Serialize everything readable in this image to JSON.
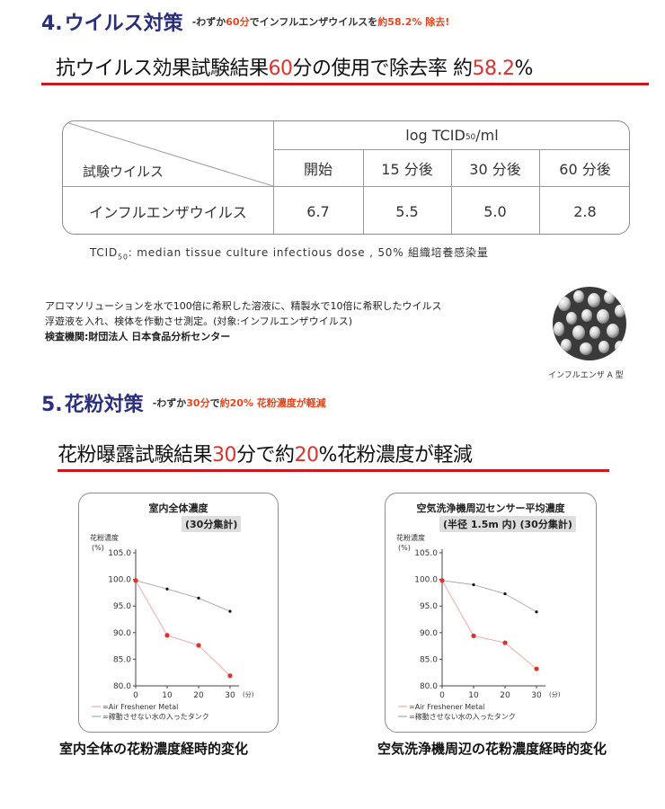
{
  "colors": {
    "accent_red": "#e0322a",
    "navy": "#2a2f7e",
    "orange": "#e8451c",
    "rule": "#c9191f"
  },
  "virus_section": {
    "num": "4.",
    "title": "ウイルス対策",
    "sub_pre": "-わずか",
    "sub_hl1": "60分",
    "sub_mid": "でインフルエンザウイルスを",
    "sub_hl2": "約58.2%",
    "sub_post": " 除去!",
    "headline_pre": "抗ウイルス効果試験結果",
    "headline_hl1": "60",
    "headline_mid": "分の使用で除去率 約",
    "headline_hl2": "58.2",
    "headline_post": "%"
  },
  "virus_table": {
    "unit_main": "log TCID",
    "unit_sub": "50",
    "unit_post": " /ml",
    "row_header": "試験ウイルス",
    "columns": [
      "開始",
      "15 分後",
      "30 分後",
      "60 分後"
    ],
    "row_label": "インフルエンザウイルス",
    "values": [
      "6.7",
      "5.5",
      "5.0",
      "2.8"
    ]
  },
  "tcid_note": {
    "pre": "TCID",
    "sub": "50",
    "post": ": median tissue culture infectious dose , 50% 組織培養感染量"
  },
  "method": {
    "line1": "アロマソリューションを水で100倍に希釈した溶液に、精製水で10倍に希釈したウイルス",
    "line2": "浮遊液を入れ、検体を作動させ測定。(対象:インフルエンザウイルス)",
    "line3": "検査機関:財団法人 日本食品分析センター"
  },
  "virus_image_caption": "インフルエンザ A 型",
  "pollen_section": {
    "num": "5.",
    "title": "花粉対策",
    "sub_pre": "-わずか",
    "sub_hl1": "30分",
    "sub_mid": "で",
    "sub_hl2": "約20% 花粉濃度が軽減",
    "headline_pre": "花粉曝露試験結果",
    "headline_hl1": "30",
    "headline_mid": "分で約",
    "headline_hl2": "20",
    "headline_post": "%花粉濃度が軽減"
  },
  "chart_data": [
    {
      "type": "line",
      "title": "室内全体濃度",
      "subtitle": "(30分集計)",
      "ylabel": "花粉濃度",
      "yunit": "(%)",
      "xunit": "(分)",
      "x": [
        0,
        10,
        20,
        30
      ],
      "ylim": [
        80.0,
        105.0
      ],
      "yticks": [
        "105.0",
        "100.0",
        "95.0",
        "90.0",
        "85.0",
        "80.0"
      ],
      "xticks": [
        "0",
        "10",
        "20",
        "30"
      ],
      "series": [
        {
          "name": "=Air Freshener Metal",
          "color": "#e0322a",
          "values": [
            99.8,
            89.5,
            87.6,
            81.9
          ]
        },
        {
          "name": "=稼動させない水の入ったタンク",
          "color": "#111111",
          "values": [
            99.8,
            98.2,
            96.5,
            94.0
          ]
        }
      ],
      "caption": "室内全体の花粉濃度経時的変化"
    },
    {
      "type": "line",
      "title": "空気洗浄機周辺センサー平均濃度",
      "subtitle": "(半径 1.5m 内) (30分集計)",
      "ylabel": "花粉濃度",
      "yunit": "(%)",
      "xunit": "(分)",
      "x": [
        0,
        10,
        20,
        30
      ],
      "ylim": [
        80.0,
        105.0
      ],
      "yticks": [
        "105.0",
        "100.0",
        "95.0",
        "90.0",
        "85.0",
        "80.0"
      ],
      "xticks": [
        "0",
        "10",
        "20",
        "30"
      ],
      "series": [
        {
          "name": "=Air Freshener Metal",
          "color": "#e0322a",
          "values": [
            99.8,
            89.4,
            88.1,
            83.2
          ]
        },
        {
          "name": "=稼動させない水の入ったタンク",
          "color": "#111111",
          "values": [
            99.8,
            99.0,
            97.3,
            93.9
          ]
        }
      ],
      "caption": "空気洗浄機周辺の花粉濃度経時的変化"
    }
  ]
}
